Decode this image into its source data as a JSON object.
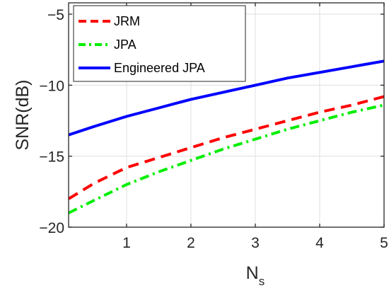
{
  "chart_data": {
    "type": "line",
    "title": "",
    "xlabel": "N",
    "xlabel_subscript": "s",
    "ylabel": "SNR(dB)",
    "xlim": [
      0.1,
      5
    ],
    "ylim": [
      -20,
      -4.2
    ],
    "xticks": [
      1,
      2,
      3,
      4,
      5
    ],
    "xtick_labels": [
      "1",
      "2",
      "3",
      "4",
      "5"
    ],
    "yticks": [
      -20,
      -15,
      -10,
      -5
    ],
    "ytick_labels": [
      "−20",
      "−15",
      "−10",
      "−5"
    ],
    "grid": true,
    "legend_position": "top-left",
    "x": [
      0.1,
      0.5,
      1,
      1.5,
      2,
      2.5,
      3,
      3.5,
      4,
      4.5,
      5
    ],
    "series": [
      {
        "name": "JRM",
        "color": "#ff0000",
        "style": "dashed",
        "values": [
          -18.0,
          -16.9,
          -15.8,
          -15.1,
          -14.4,
          -13.7,
          -13.1,
          -12.5,
          -11.9,
          -11.4,
          -10.8
        ]
      },
      {
        "name": "JPA",
        "color": "#00ee00",
        "style": "dashdot",
        "values": [
          -19.0,
          -18.1,
          -17.0,
          -16.1,
          -15.3,
          -14.5,
          -13.8,
          -13.1,
          -12.5,
          -11.9,
          -11.4
        ]
      },
      {
        "name": "Engineered JPA",
        "color": "#0000ff",
        "style": "solid",
        "values": [
          -13.5,
          -12.9,
          -12.2,
          -11.6,
          -11.0,
          -10.5,
          -10.0,
          -9.5,
          -9.1,
          -8.7,
          -8.3
        ]
      }
    ]
  }
}
